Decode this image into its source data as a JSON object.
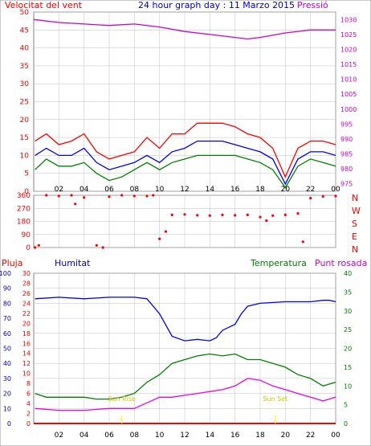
{
  "colors": {
    "wind": "#ff0000",
    "gust": "#ff0000",
    "avg": "#0000ff",
    "low": "#008000",
    "pressure": "#cc00cc",
    "direction": "#ff0000",
    "humidity": "#0000ff",
    "temperature": "#008000",
    "dewpoint": "#ee00ee",
    "rain": "#ff0000",
    "sunmark": "#ffff00",
    "grid": "#c0c0c0"
  },
  "top": {
    "left_title": "Velocitat del vent",
    "center_title": "24 hour graph day : 11 Marzo 2015",
    "right_title": "Pressió"
  },
  "bottom": {
    "rain_label": "Pluja",
    "humidity_label": "Humitat",
    "temperature_label": "Temperatura",
    "dewpoint_label": "Punt rosada",
    "sunrise_label": "Sun Rise",
    "sunset_label": "Sun Set"
  },
  "compass": [
    "N",
    "W",
    "S",
    "E",
    "N"
  ],
  "chart_data": [
    {
      "type": "line",
      "x_ticks": [
        "02",
        "04",
        "06",
        "08",
        "10",
        "12",
        "14",
        "16",
        "18",
        "20",
        "22",
        "00"
      ],
      "y_left_ticks": [
        "0",
        "5",
        "10",
        "15",
        "20",
        "25",
        "30",
        "35",
        "40",
        "45",
        "50"
      ],
      "y_right_ticks": [
        "975",
        "980",
        "985",
        "990",
        "995",
        "1000",
        "1005",
        "1010",
        "1015",
        "1020",
        "1025",
        "1030"
      ],
      "ylim_left": [
        0,
        50
      ],
      "ylim_right": [
        972.5,
        1032.5
      ],
      "series": [
        {
          "name": "Velocitat del vent",
          "axis": "left",
          "points": [
            [
              0.1,
              14
            ],
            [
              1,
              16
            ],
            [
              2,
              13
            ],
            [
              3,
              14
            ],
            [
              4,
              16
            ],
            [
              5,
              11
            ],
            [
              6,
              9
            ],
            [
              7,
              10
            ],
            [
              8,
              11
            ],
            [
              9,
              15
            ],
            [
              10,
              12
            ],
            [
              11,
              16
            ],
            [
              12,
              16
            ],
            [
              13,
              19
            ],
            [
              14,
              19
            ],
            [
              15,
              19
            ],
            [
              16,
              18
            ],
            [
              17,
              16
            ],
            [
              18,
              15
            ],
            [
              19,
              12
            ],
            [
              20,
              4
            ],
            [
              21,
              12
            ],
            [
              22,
              14
            ],
            [
              23,
              14
            ],
            [
              24,
              13
            ]
          ]
        },
        {
          "name": "",
          "axis": "left",
          "points": [
            [
              0.1,
              10
            ],
            [
              1,
              12
            ],
            [
              2,
              10
            ],
            [
              3,
              10
            ],
            [
              4,
              12
            ],
            [
              5,
              8
            ],
            [
              6,
              6
            ],
            [
              7,
              7
            ],
            [
              8,
              8
            ],
            [
              9,
              10
            ],
            [
              10,
              8
            ],
            [
              11,
              11
            ],
            [
              12,
              12
            ],
            [
              13,
              14
            ],
            [
              14,
              14
            ],
            [
              15,
              14
            ],
            [
              16,
              13
            ],
            [
              17,
              12
            ],
            [
              18,
              11
            ],
            [
              19,
              9
            ],
            [
              20,
              2
            ],
            [
              21,
              9
            ],
            [
              22,
              11
            ],
            [
              23,
              11
            ],
            [
              24,
              10
            ]
          ]
        },
        {
          "name": "",
          "axis": "left",
          "points": [
            [
              0.1,
              6
            ],
            [
              1,
              9
            ],
            [
              2,
              7
            ],
            [
              3,
              7
            ],
            [
              4,
              8
            ],
            [
              5,
              5
            ],
            [
              6,
              3
            ],
            [
              7,
              4
            ],
            [
              8,
              6
            ],
            [
              9,
              8
            ],
            [
              10,
              6
            ],
            [
              11,
              8
            ],
            [
              12,
              9
            ],
            [
              13,
              10
            ],
            [
              14,
              10
            ],
            [
              15,
              10
            ],
            [
              16,
              10
            ],
            [
              17,
              9
            ],
            [
              18,
              8
            ],
            [
              19,
              6
            ],
            [
              20,
              1
            ],
            [
              21,
              7
            ],
            [
              22,
              9
            ],
            [
              23,
              8
            ],
            [
              24,
              7
            ]
          ]
        },
        {
          "name": "Pressió",
          "axis": "right",
          "points": [
            [
              0,
              1030
            ],
            [
              2,
              1029
            ],
            [
              4,
              1028.5
            ],
            [
              6,
              1028
            ],
            [
              8,
              1028.5
            ],
            [
              10,
              1027.5
            ],
            [
              12,
              1026
            ],
            [
              14,
              1025
            ],
            [
              16,
              1024
            ],
            [
              17,
              1023.5
            ],
            [
              18,
              1024
            ],
            [
              20,
              1025.5
            ],
            [
              22,
              1026.5
            ],
            [
              24,
              1026.5
            ]
          ]
        }
      ]
    },
    {
      "type": "scatter",
      "x_ticks": [
        "02",
        "04",
        "06",
        "08",
        "10",
        "12",
        "14",
        "16",
        "18",
        "20",
        "22",
        "00"
      ],
      "y_left_ticks": [
        "0",
        "90",
        "180",
        "270",
        "360"
      ],
      "y_right_ticks": [
        "N",
        "W",
        "S",
        "E",
        "N"
      ],
      "ylim": [
        0,
        360
      ],
      "series": [
        {
          "name": "",
          "points": [
            [
              0.1,
              0
            ],
            [
              0.4,
              15
            ],
            [
              1,
              360
            ],
            [
              2,
              355
            ],
            [
              3,
              360
            ],
            [
              3.3,
              300
            ],
            [
              4,
              345
            ],
            [
              5,
              15
            ],
            [
              5.5,
              0
            ],
            [
              6,
              350
            ],
            [
              7,
              360
            ],
            [
              8,
              355
            ],
            [
              9,
              355
            ],
            [
              9.5,
              360
            ],
            [
              10,
              60
            ],
            [
              10.5,
              110
            ],
            [
              11,
              225
            ],
            [
              12,
              228
            ],
            [
              13,
              222
            ],
            [
              14,
              220
            ],
            [
              15,
              225
            ],
            [
              16,
              222
            ],
            [
              17,
              225
            ],
            [
              18,
              210
            ],
            [
              18.5,
              185
            ],
            [
              19,
              220
            ],
            [
              20,
              225
            ],
            [
              21,
              235
            ],
            [
              21.4,
              40
            ],
            [
              22,
              340
            ],
            [
              23,
              352
            ],
            [
              24,
              355
            ]
          ]
        }
      ]
    },
    {
      "type": "line",
      "x_ticks": [
        "02",
        "04",
        "06",
        "08",
        "10",
        "12",
        "14",
        "16",
        "18",
        "20",
        "22",
        "00"
      ],
      "y_left_ticks": [
        "0",
        "10",
        "20",
        "30",
        "40",
        "50",
        "60",
        "70",
        "80",
        "90",
        "100"
      ],
      "y_mid_ticks": [
        "0",
        "2",
        "4",
        "6",
        "8",
        "10",
        "12",
        "14",
        "16",
        "18",
        "20",
        "22",
        "24",
        "26",
        "28",
        "30"
      ],
      "y_right_ticks": [
        "0",
        "5",
        "10",
        "15",
        "20",
        "25",
        "30",
        "35",
        "40"
      ],
      "ylim_humidity": [
        0,
        100
      ],
      "ylim_temperature": [
        0,
        40
      ],
      "series": [
        {
          "name": "Humitat",
          "axis": "humidity",
          "points": [
            [
              0.1,
              83
            ],
            [
              2,
              84
            ],
            [
              4,
              83
            ],
            [
              6,
              84
            ],
            [
              8,
              84
            ],
            [
              9,
              83
            ],
            [
              10,
              73
            ],
            [
              11,
              58
            ],
            [
              12,
              55
            ],
            [
              13,
              56
            ],
            [
              14,
              55
            ],
            [
              14.5,
              57
            ],
            [
              15,
              62
            ],
            [
              16,
              66
            ],
            [
              16.5,
              73
            ],
            [
              17,
              78
            ],
            [
              18,
              80
            ],
            [
              20,
              81
            ],
            [
              22,
              81
            ],
            [
              23,
              82
            ],
            [
              23.5,
              82
            ],
            [
              24,
              81
            ]
          ]
        },
        {
          "name": "Temperatura",
          "axis": "temperature",
          "points": [
            [
              0.1,
              8
            ],
            [
              1,
              7
            ],
            [
              2,
              7
            ],
            [
              3,
              7
            ],
            [
              4,
              7
            ],
            [
              5,
              6.5
            ],
            [
              6,
              6.5
            ],
            [
              7,
              7
            ],
            [
              8,
              8
            ],
            [
              9,
              11
            ],
            [
              10,
              13
            ],
            [
              11,
              16
            ],
            [
              12,
              17
            ],
            [
              13,
              18
            ],
            [
              14,
              18.5
            ],
            [
              15,
              18
            ],
            [
              16,
              18.5
            ],
            [
              17,
              17
            ],
            [
              18,
              17
            ],
            [
              19,
              16
            ],
            [
              20,
              15
            ],
            [
              21,
              13
            ],
            [
              22,
              12
            ],
            [
              23,
              10
            ],
            [
              24,
              11
            ]
          ]
        },
        {
          "name": "Punt rosada",
          "axis": "temperature",
          "points": [
            [
              0.1,
              4
            ],
            [
              2,
              3.5
            ],
            [
              4,
              3.5
            ],
            [
              6,
              4
            ],
            [
              7,
              4
            ],
            [
              8,
              4
            ],
            [
              9,
              5.5
            ],
            [
              10,
              7
            ],
            [
              11,
              7
            ],
            [
              12,
              7.5
            ],
            [
              13,
              8
            ],
            [
              14,
              8.5
            ],
            [
              15,
              9
            ],
            [
              16,
              10
            ],
            [
              17,
              12
            ],
            [
              18,
              11.5
            ],
            [
              19,
              10
            ],
            [
              20,
              9
            ],
            [
              21,
              8
            ],
            [
              22,
              7
            ],
            [
              23,
              6
            ],
            [
              24,
              7
            ]
          ]
        },
        {
          "name": "Pluja",
          "axis": "rain",
          "points": [
            [
              0,
              0
            ],
            [
              24,
              0
            ]
          ]
        }
      ],
      "markers": [
        {
          "label": "Sun Rise",
          "hour": 7.0
        },
        {
          "label": "Sun Set",
          "hour": 19.2
        }
      ]
    }
  ]
}
